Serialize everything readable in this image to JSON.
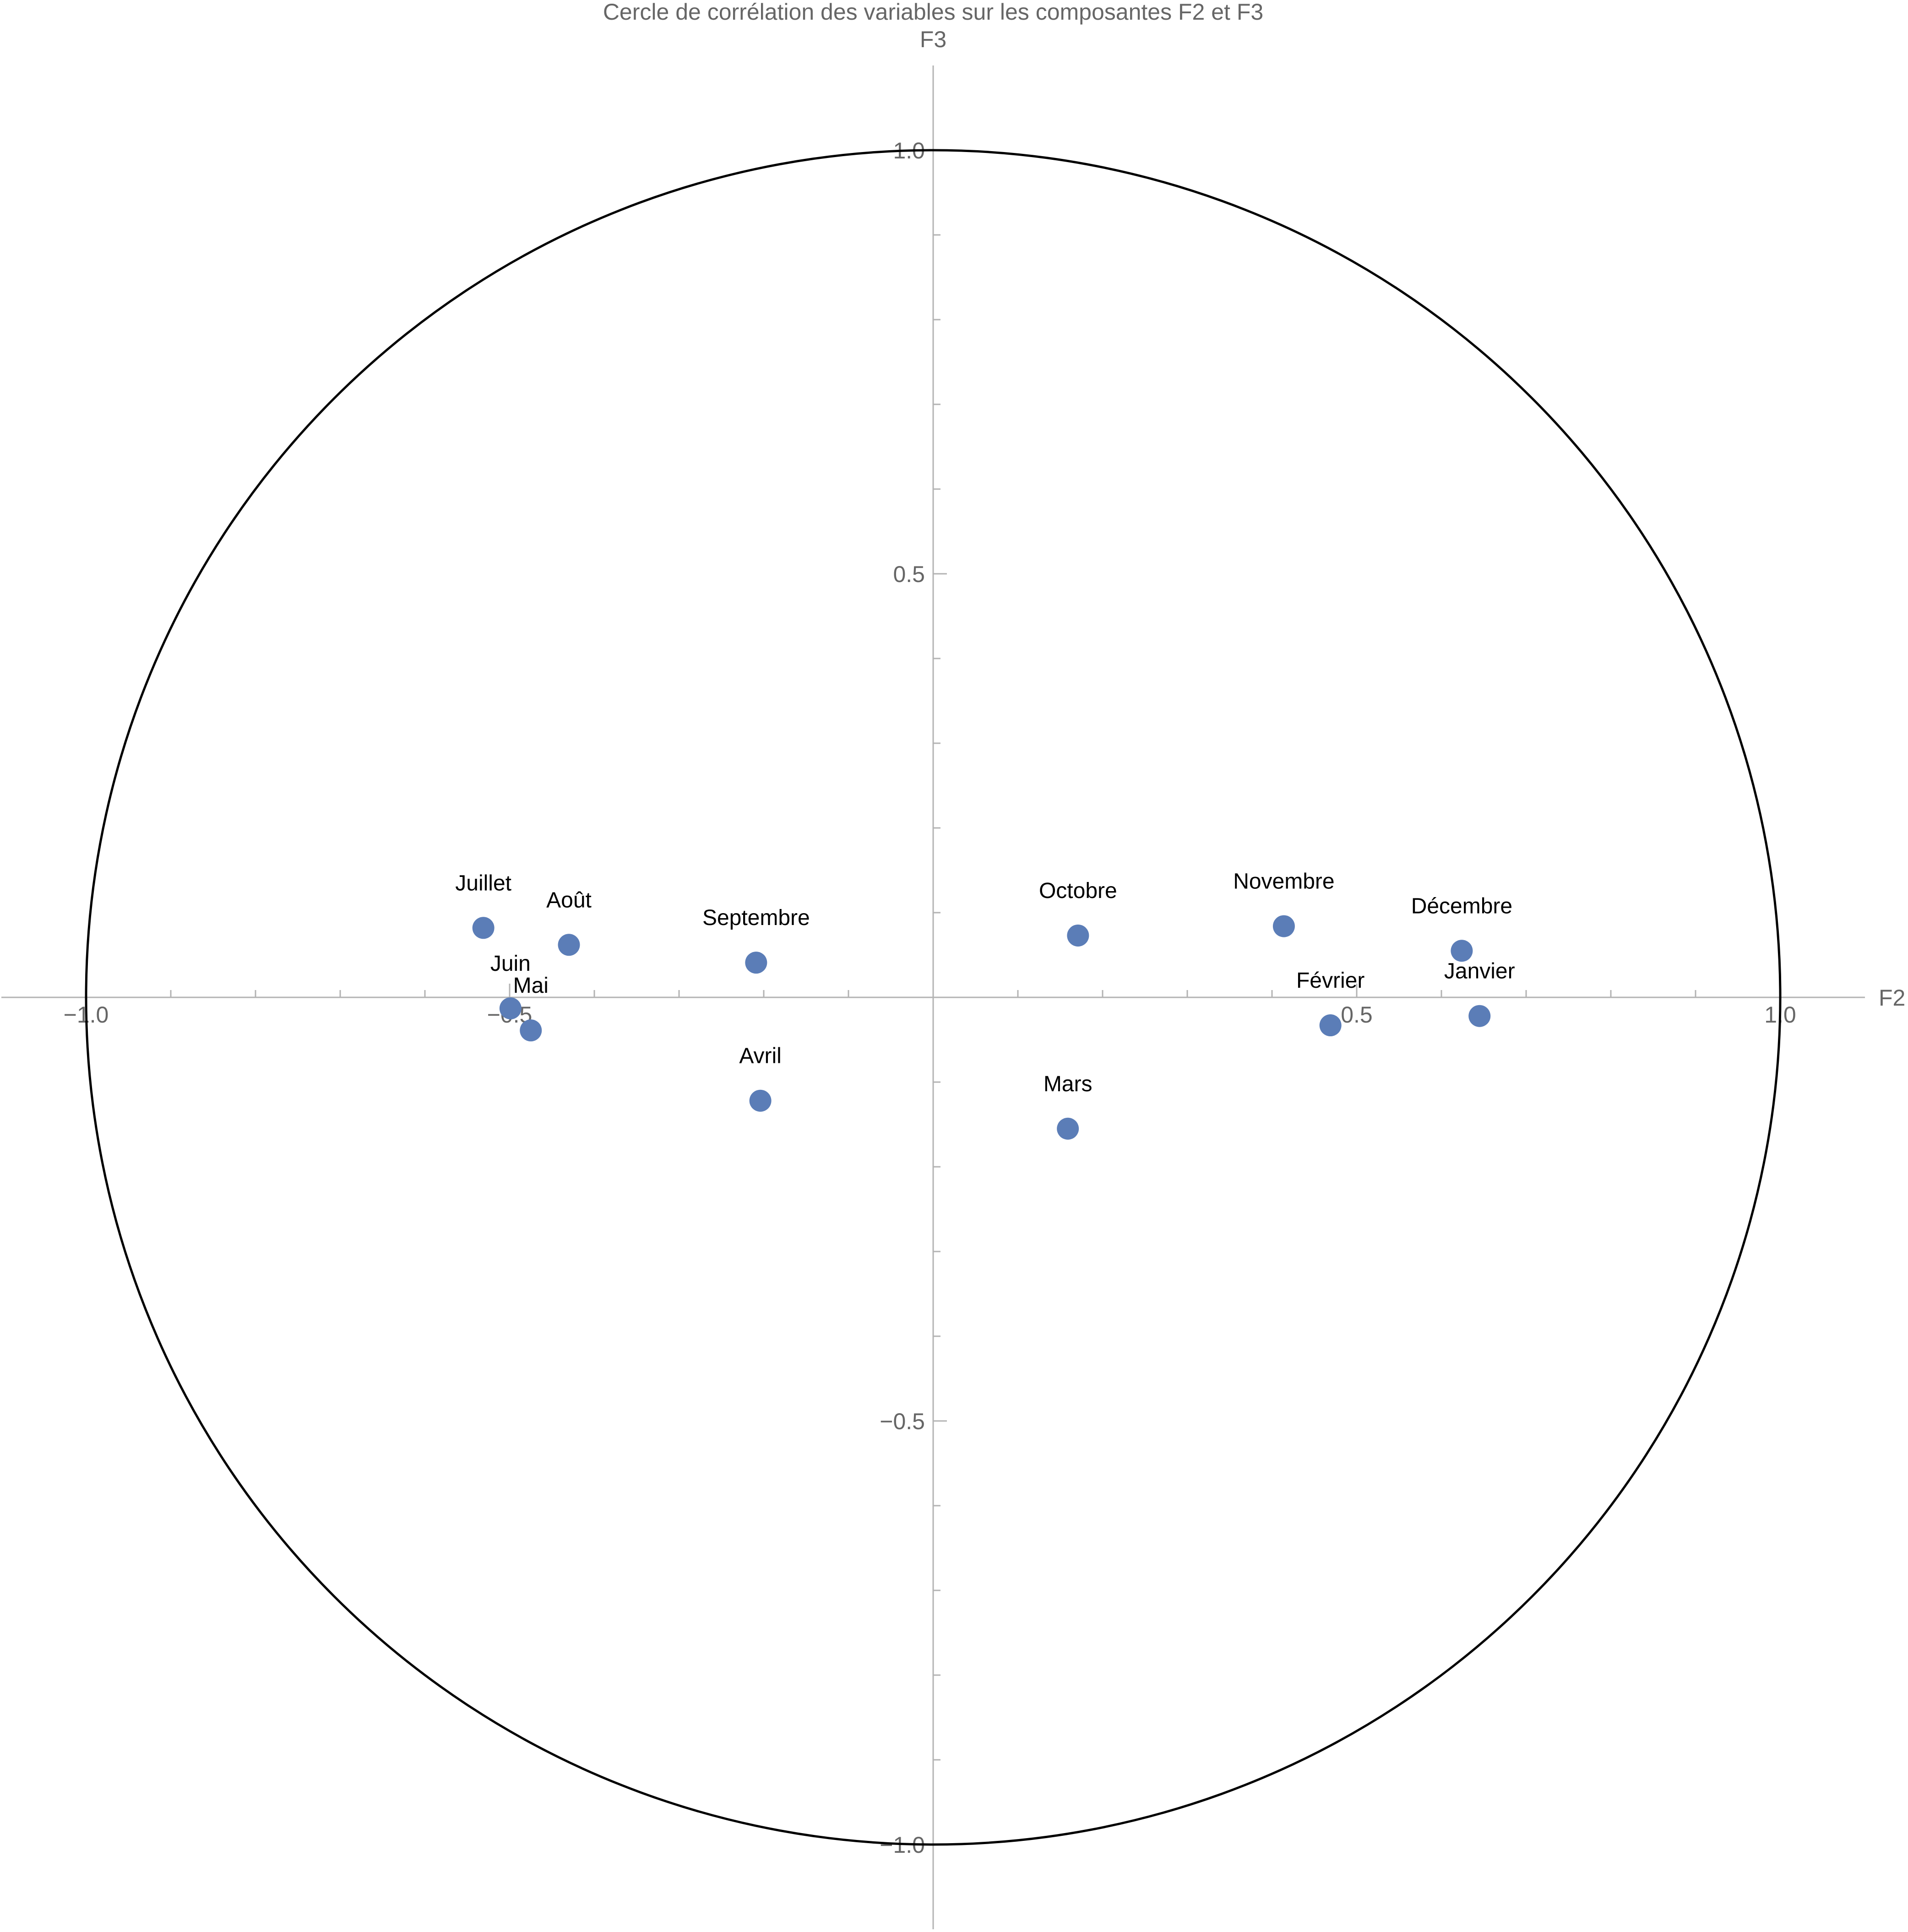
{
  "chart_data": {
    "type": "scatter",
    "title": "Cercle de corrélation des variables sur les composantes F2 et F3",
    "xlabel": "F2",
    "ylabel": "F3",
    "xlim": [
      -1.1,
      1.1
    ],
    "ylim": [
      -1.1,
      1.1
    ],
    "xticks": [
      {
        "value": -1.0,
        "label": "−1.0"
      },
      {
        "value": -0.5,
        "label": "−0.5"
      },
      {
        "value": 0.5,
        "label": "0.5"
      },
      {
        "value": 1.0,
        "label": "1.0"
      }
    ],
    "yticks": [
      {
        "value": 1.0,
        "label": "1.0"
      },
      {
        "value": 0.5,
        "label": "0.5"
      },
      {
        "value": -0.5,
        "label": "−0.5"
      },
      {
        "value": -1.0,
        "label": "−1.0"
      }
    ],
    "unit_circle": true,
    "grid": false,
    "point_color": "#5b7db7",
    "points": [
      {
        "label": "Janvier",
        "x": 0.645,
        "y": -0.022
      },
      {
        "label": "Février",
        "x": 0.469,
        "y": -0.033
      },
      {
        "label": "Mars",
        "x": 0.159,
        "y": -0.155
      },
      {
        "label": "Avril",
        "x": -0.204,
        "y": -0.122
      },
      {
        "label": "Mai",
        "x": -0.475,
        "y": -0.039
      },
      {
        "label": "Juin",
        "x": -0.499,
        "y": -0.013
      },
      {
        "label": "Juillet",
        "x": -0.531,
        "y": 0.082
      },
      {
        "label": "Août",
        "x": -0.43,
        "y": 0.062
      },
      {
        "label": "Septembre",
        "x": -0.209,
        "y": 0.041
      },
      {
        "label": "Octobre",
        "x": 0.171,
        "y": 0.073
      },
      {
        "label": "Novembre",
        "x": 0.414,
        "y": 0.084
      },
      {
        "label": "Décembre",
        "x": 0.624,
        "y": 0.055
      }
    ]
  }
}
